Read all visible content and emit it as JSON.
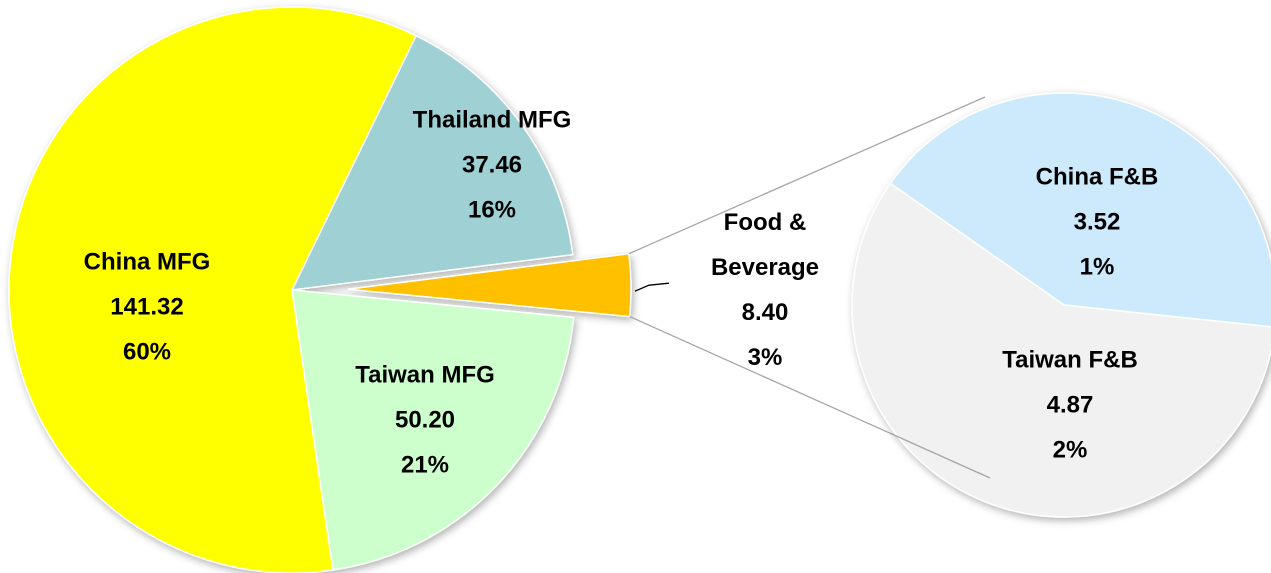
{
  "chart_data": {
    "type": "pie-of-pie",
    "categories": [
      "Thailand MFG",
      "Food & Beverage",
      "Taiwan MFG",
      "China MFG"
    ],
    "values": [
      37.46,
      8.4,
      50.2,
      141.32
    ],
    "value_labels": [
      "37.46",
      "8.40",
      "50.20",
      "141.32"
    ],
    "percents": [
      16,
      3,
      21,
      60
    ],
    "percent_labels": [
      "16%",
      "3%",
      "21%",
      "60%"
    ],
    "colors": [
      "#9fd0d4",
      "#ffc000",
      "#ccffcc",
      "#ffff00"
    ],
    "secondary": {
      "categories": [
        "China F&B",
        "Taiwan F&B"
      ],
      "values": [
        3.52,
        4.87
      ],
      "value_labels": [
        "3.52",
        "4.87"
      ],
      "percents": [
        1,
        2
      ],
      "percent_labels": [
        "1%",
        "2%"
      ],
      "colors": [
        "#cceafc",
        "#f1f1f1"
      ]
    }
  }
}
